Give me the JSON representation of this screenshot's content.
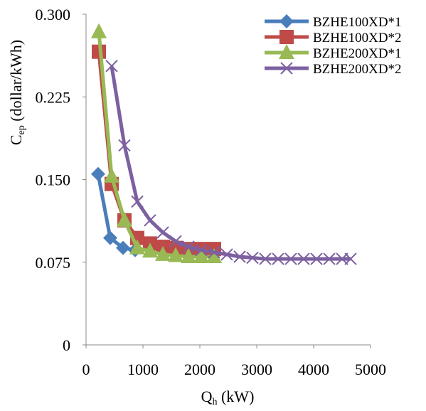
{
  "chart_data": {
    "type": "line",
    "xlabel": {
      "main": "Q",
      "sub": "h",
      "rest": " (kW)"
    },
    "ylabel": {
      "main": "C",
      "sub": "ep",
      "rest": " (dollar/kWh)"
    },
    "xlim": [
      0,
      5000
    ],
    "xticks": [
      0,
      1000,
      2000,
      3000,
      4000,
      5000
    ],
    "ylim": [
      0,
      0.3
    ],
    "yticks": [
      0,
      0.075,
      {
        "value": 0.15,
        "label": "0.150"
      },
      0.225,
      {
        "value": 0.3,
        "label": "0.300"
      }
    ],
    "grid": false,
    "legend": "top-right",
    "series": [
      {
        "name": "BZHE100XD*1",
        "color": "#4a7ebb",
        "marker": "diamond",
        "x": [
          212,
          425,
          650,
          862
        ],
        "values": [
          0.155,
          0.097,
          0.088,
          0.086
        ]
      },
      {
        "name": "BZHE100XD*2",
        "color": "#be4b48",
        "marker": "square",
        "x": [
          225,
          450,
          675,
          900,
          1125,
          1350,
          1575,
          1800,
          2025,
          2250
        ],
        "values": [
          0.266,
          0.146,
          0.113,
          0.097,
          0.092,
          0.089,
          0.088,
          0.087,
          0.087,
          0.087
        ]
      },
      {
        "name": "BZHE200XD*1",
        "color": "#98b954",
        "marker": "triangle",
        "x": [
          225,
          450,
          675,
          900,
          1125,
          1350,
          1575,
          1800,
          2025,
          2250
        ],
        "values": [
          0.284,
          0.153,
          0.113,
          0.088,
          0.085,
          0.082,
          0.081,
          0.08,
          0.08,
          0.08
        ]
      },
      {
        "name": "BZHE200XD*2",
        "color": "#7d60a0",
        "marker": "x",
        "x": [
          450,
          675,
          900,
          1125,
          1350,
          1575,
          1800,
          2025,
          2250,
          2475,
          2700,
          2925,
          3150,
          3375,
          3600,
          3825,
          4050,
          4275,
          4500,
          4650
        ],
        "values": [
          0.253,
          0.181,
          0.13,
          0.113,
          0.102,
          0.094,
          0.089,
          0.086,
          0.084,
          0.082,
          0.08,
          0.079,
          0.078,
          0.078,
          0.078,
          0.078,
          0.078,
          0.078,
          0.078,
          0.078
        ]
      }
    ]
  }
}
